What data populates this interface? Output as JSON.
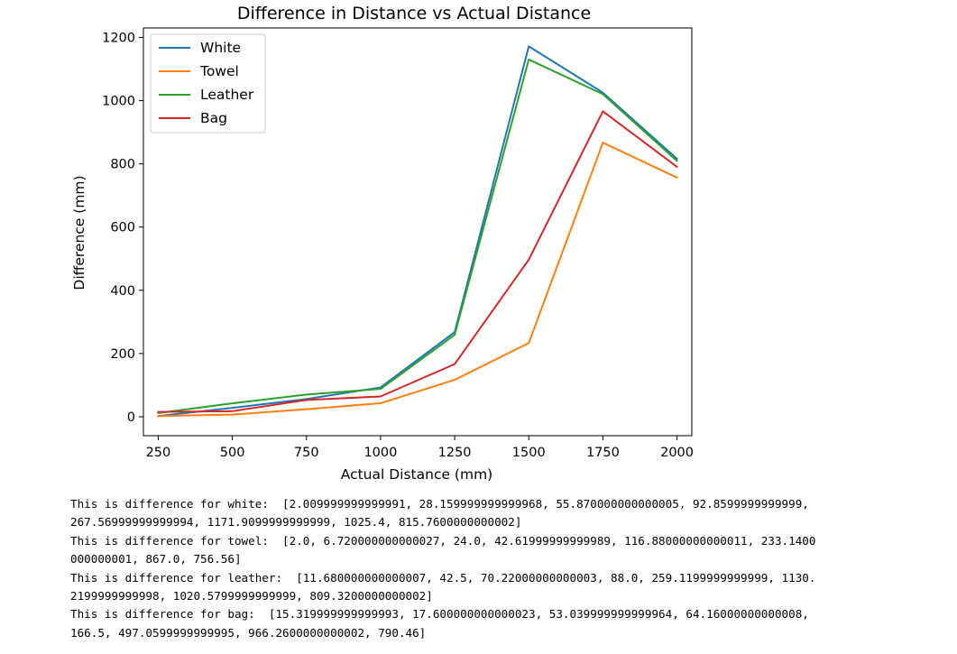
{
  "chart_data": {
    "type": "line",
    "title": "Difference in Distance vs Actual Distance",
    "xlabel": "Actual Distance (mm)",
    "ylabel": "Difference (mm)",
    "x": [
      250,
      500,
      750,
      1000,
      1250,
      1500,
      1750,
      2000
    ],
    "xticks": [
      250,
      500,
      750,
      1000,
      1250,
      1500,
      1750,
      2000
    ],
    "yticks": [
      0,
      200,
      400,
      600,
      800,
      1000,
      1200
    ],
    "xlim": [
      200,
      2050
    ],
    "ylim": [
      -60,
      1230
    ],
    "grid": false,
    "legend_position": "upper-left",
    "series": [
      {
        "name": "White",
        "color": "#1f77b4",
        "values": [
          2.01,
          28.16,
          55.87,
          92.86,
          267.57,
          1171.91,
          1025.4,
          815.76
        ]
      },
      {
        "name": "Towel",
        "color": "#ff7f0e",
        "values": [
          2.0,
          6.72,
          24.0,
          42.62,
          116.88,
          233.14,
          867.0,
          756.56
        ]
      },
      {
        "name": "Leather",
        "color": "#2ca02c",
        "values": [
          11.68,
          42.5,
          70.22,
          88.0,
          259.12,
          1130.22,
          1020.58,
          809.32
        ]
      },
      {
        "name": "Bag",
        "color": "#d62728",
        "values": [
          15.32,
          17.6,
          53.04,
          64.16,
          166.5,
          497.06,
          966.26,
          790.46
        ]
      }
    ]
  },
  "output": {
    "lines": [
      "This is difference for white:  [2.009999999999991, 28.159999999999968, 55.870000000000005, 92.8599999999999,",
      "267.56999999999994, 1171.9099999999999, 1025.4, 815.7600000000002]",
      "This is difference for towel:  [2.0, 6.720000000000027, 24.0, 42.61999999999989, 116.88000000000011, 233.1400",
      "000000001, 867.0, 756.56]",
      "This is difference for leather:  [11.680000000000007, 42.5, 70.22000000000003, 88.0, 259.1199999999999, 1130.",
      "2199999999998, 1020.5799999999999, 809.3200000000002]",
      "This is difference for bag:  [15.319999999999993, 17.600000000000023, 53.039999999999964, 64.16000000000008,",
      "166.5, 497.0599999999995, 966.2600000000002, 790.46]"
    ]
  }
}
